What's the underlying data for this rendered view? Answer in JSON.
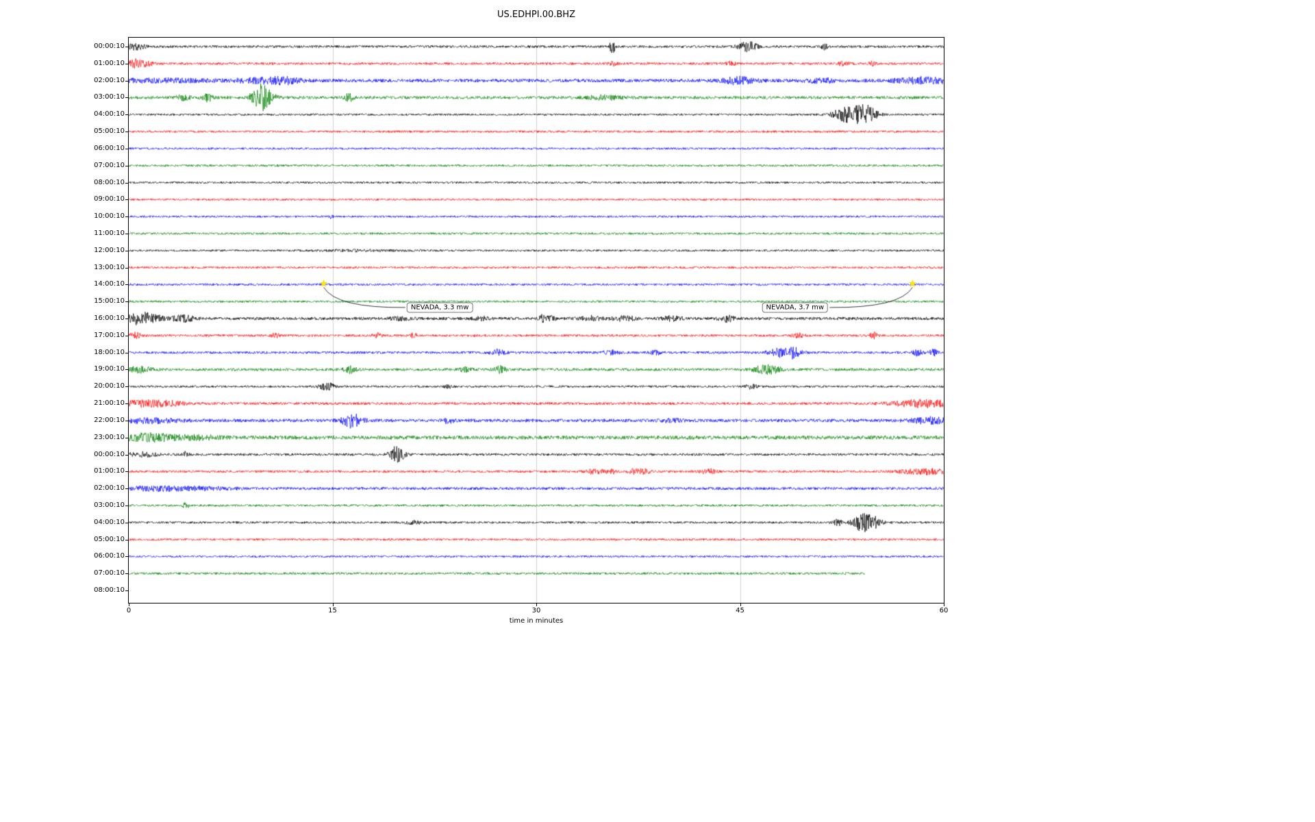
{
  "title": "US.EDHPI.00.BHZ",
  "chart_data": {
    "type": "line",
    "subtype": "seismogram-helicorder-dayplot",
    "title": "US.EDHPI.00.BHZ",
    "xlabel": "time in minutes",
    "xlim": [
      0,
      60
    ],
    "xticks": [
      0,
      15,
      30,
      45,
      60
    ],
    "grid_x": [
      15,
      30,
      45
    ],
    "grid_color": "#cfcfcf",
    "trace_color_cycle": [
      "#000000",
      "#ff0000",
      "#0000ff",
      "#008000"
    ],
    "rows": [
      {
        "label": "00:00:10",
        "color": "#000000",
        "base": 1.8,
        "events": [
          [
            0.5,
            4,
            0.5
          ],
          [
            35.6,
            9,
            0.15
          ],
          [
            45.3,
            5,
            0.4
          ],
          [
            45.9,
            6,
            0.3
          ],
          [
            51.2,
            5,
            0.15
          ]
        ]
      },
      {
        "label": "01:00:10",
        "color": "#ff0000",
        "base": 1.8,
        "events": [
          [
            0.4,
            6,
            0.3
          ],
          [
            1.2,
            4,
            0.4
          ],
          [
            35.6,
            3,
            0.2
          ],
          [
            44.3,
            2.5,
            0.3
          ],
          [
            52.6,
            3,
            0.3
          ],
          [
            54.7,
            2.5,
            0.2
          ]
        ]
      },
      {
        "label": "02:00:10",
        "color": "#0000ff",
        "base": 2.5,
        "events": [
          [
            2,
            2,
            3
          ],
          [
            10,
            3,
            1.5
          ],
          [
            11.5,
            3,
            0.8
          ],
          [
            44.8,
            2,
            0.6
          ],
          [
            45,
            2.5,
            1
          ],
          [
            51,
            2.5,
            0.8
          ],
          [
            58.5,
            4,
            1.5
          ]
        ]
      },
      {
        "label": "03:00:10",
        "color": "#008000",
        "base": 2.2,
        "events": [
          [
            4,
            4,
            0.3
          ],
          [
            5.8,
            5,
            0.3
          ],
          [
            9.6,
            14,
            0.4
          ],
          [
            10.1,
            8,
            0.5
          ],
          [
            16.2,
            6,
            0.2
          ],
          [
            35,
            2.5,
            1
          ]
        ]
      },
      {
        "label": "04:00:10",
        "color": "#000000",
        "base": 1.5,
        "events": [
          [
            52,
            3,
            0.4
          ],
          [
            52.8,
            8,
            0.5
          ],
          [
            53.8,
            10,
            0.6
          ],
          [
            54.5,
            7,
            0.5
          ]
        ]
      },
      {
        "label": "05:00:10",
        "color": "#ff0000",
        "base": 1.6,
        "events": []
      },
      {
        "label": "06:00:10",
        "color": "#0000ff",
        "base": 1.5,
        "events": []
      },
      {
        "label": "07:00:10",
        "color": "#008000",
        "base": 1.6,
        "events": []
      },
      {
        "label": "08:00:10",
        "color": "#000000",
        "base": 1.5,
        "events": []
      },
      {
        "label": "09:00:10",
        "color": "#ff0000",
        "base": 1.5,
        "events": []
      },
      {
        "label": "10:00:10",
        "color": "#0000ff",
        "base": 1.5,
        "events": [
          [
            14.9,
            2.5,
            0.1
          ]
        ]
      },
      {
        "label": "11:00:10",
        "color": "#008000",
        "base": 1.6,
        "events": []
      },
      {
        "label": "12:00:10",
        "color": "#000000",
        "base": 1.5,
        "events": [
          [
            17,
            1,
            2
          ]
        ]
      },
      {
        "label": "13:00:10",
        "color": "#ff0000",
        "base": 1.6,
        "events": []
      },
      {
        "label": "14:00:10",
        "color": "#0000ff",
        "base": 1.6,
        "events": []
      },
      {
        "label": "15:00:10",
        "color": "#008000",
        "base": 1.6,
        "events": []
      },
      {
        "label": "16:00:10",
        "color": "#000000",
        "base": 2.2,
        "events": [
          [
            0.7,
            6,
            0.5
          ],
          [
            1.5,
            5,
            0.8
          ],
          [
            4,
            4,
            0.6
          ],
          [
            20,
            2,
            0.5
          ],
          [
            26,
            2,
            0.5
          ],
          [
            30.4,
            7,
            0.12
          ],
          [
            31,
            3,
            0.3
          ],
          [
            34,
            3,
            0.5
          ],
          [
            36.5,
            3,
            0.6
          ],
          [
            40,
            3,
            0.5
          ],
          [
            44,
            4,
            0.4
          ]
        ]
      },
      {
        "label": "17:00:10",
        "color": "#ff0000",
        "base": 1.7,
        "events": [
          [
            0.5,
            4,
            0.3
          ],
          [
            10.8,
            3,
            0.2
          ],
          [
            18.3,
            4,
            0.2
          ],
          [
            21,
            3,
            0.2
          ],
          [
            49.3,
            3,
            0.3
          ],
          [
            54.8,
            5,
            0.2
          ]
        ]
      },
      {
        "label": "18:00:10",
        "color": "#0000ff",
        "base": 1.8,
        "events": [
          [
            27.2,
            4,
            0.4
          ],
          [
            35.5,
            3,
            0.4
          ],
          [
            38.8,
            2.5,
            0.3
          ],
          [
            48.2,
            6,
            0.8
          ],
          [
            49,
            4,
            0.5
          ],
          [
            58,
            4,
            0.3
          ],
          [
            59.2,
            5,
            0.2
          ]
        ]
      },
      {
        "label": "19:00:10",
        "color": "#008000",
        "base": 2.0,
        "events": [
          [
            0.8,
            4,
            0.6
          ],
          [
            16.3,
            5,
            0.3
          ],
          [
            24.8,
            3,
            0.3
          ],
          [
            27.3,
            5,
            0.3
          ],
          [
            46.8,
            5,
            0.6
          ],
          [
            47.5,
            3,
            0.4
          ]
        ]
      },
      {
        "label": "20:00:10",
        "color": "#000000",
        "base": 1.6,
        "events": [
          [
            14.4,
            4,
            0.3
          ],
          [
            14.9,
            3,
            0.2
          ],
          [
            23.5,
            2.5,
            0.2
          ],
          [
            45.8,
            3,
            0.3
          ]
        ]
      },
      {
        "label": "21:00:10",
        "color": "#ff0000",
        "base": 2.0,
        "events": [
          [
            1,
            4,
            1
          ],
          [
            3,
            3,
            0.8
          ],
          [
            58.5,
            5,
            1.5
          ]
        ]
      },
      {
        "label": "22:00:10",
        "color": "#0000ff",
        "base": 2.4,
        "events": [
          [
            1.5,
            3,
            1.5
          ],
          [
            16.2,
            7,
            0.4
          ],
          [
            16.8,
            5,
            0.4
          ],
          [
            23.5,
            3,
            0.3
          ],
          [
            40,
            2,
            0.5
          ],
          [
            59,
            4,
            1
          ]
        ]
      },
      {
        "label": "23:00:10",
        "color": "#008000",
        "base": 2.8,
        "events": [
          [
            1,
            4,
            1
          ],
          [
            2.5,
            3,
            0.8
          ],
          [
            5,
            2.5,
            1
          ]
        ]
      },
      {
        "label": "00:00:10",
        "color": "#000000",
        "base": 1.8,
        "events": [
          [
            1,
            3,
            0.8
          ],
          [
            4.2,
            4,
            0.15
          ],
          [
            19.6,
            9,
            0.3
          ],
          [
            20,
            5,
            0.3
          ]
        ]
      },
      {
        "label": "01:00:10",
        "color": "#ff0000",
        "base": 1.7,
        "events": [
          [
            34.3,
            3,
            0.5
          ],
          [
            35.5,
            3.5,
            0.3
          ],
          [
            37.2,
            3.5,
            0.3
          ],
          [
            38,
            3,
            0.3
          ],
          [
            42.7,
            3.5,
            0.4
          ],
          [
            58.5,
            4,
            1.2
          ]
        ]
      },
      {
        "label": "02:00:10",
        "color": "#0000ff",
        "base": 2.0,
        "events": [
          [
            1.5,
            2.5,
            1.5
          ],
          [
            5,
            2,
            2
          ]
        ]
      },
      {
        "label": "03:00:10",
        "color": "#008000",
        "base": 1.6,
        "events": [
          [
            4.2,
            4,
            0.15
          ]
        ]
      },
      {
        "label": "04:00:10",
        "color": "#000000",
        "base": 1.6,
        "events": [
          [
            21,
            2.5,
            0.4
          ],
          [
            52.2,
            4,
            0.3
          ],
          [
            53.8,
            10,
            0.4
          ],
          [
            54.5,
            8,
            0.4
          ],
          [
            55.2,
            5,
            0.3
          ]
        ]
      },
      {
        "label": "05:00:10",
        "color": "#ff0000",
        "base": 1.6,
        "events": []
      },
      {
        "label": "06:00:10",
        "color": "#0000ff",
        "base": 1.5,
        "events": []
      },
      {
        "label": "07:00:10",
        "color": "#008000",
        "base": 1.7,
        "events": [],
        "end": 54.2
      },
      {
        "label": "08:00:10",
        "color": "#000000",
        "base": 0,
        "events": [],
        "empty": true
      }
    ],
    "annotations": [
      {
        "text": "NEVADA, 3.3 mw",
        "star_min": 14.35,
        "star_row": 14,
        "label_min": 22.9,
        "label_row": 15.35
      },
      {
        "text": "NEVADA, 3.7 mw",
        "star_min": 57.7,
        "star_row": 14,
        "label_min": 49.05,
        "label_row": 15.35
      }
    ]
  }
}
